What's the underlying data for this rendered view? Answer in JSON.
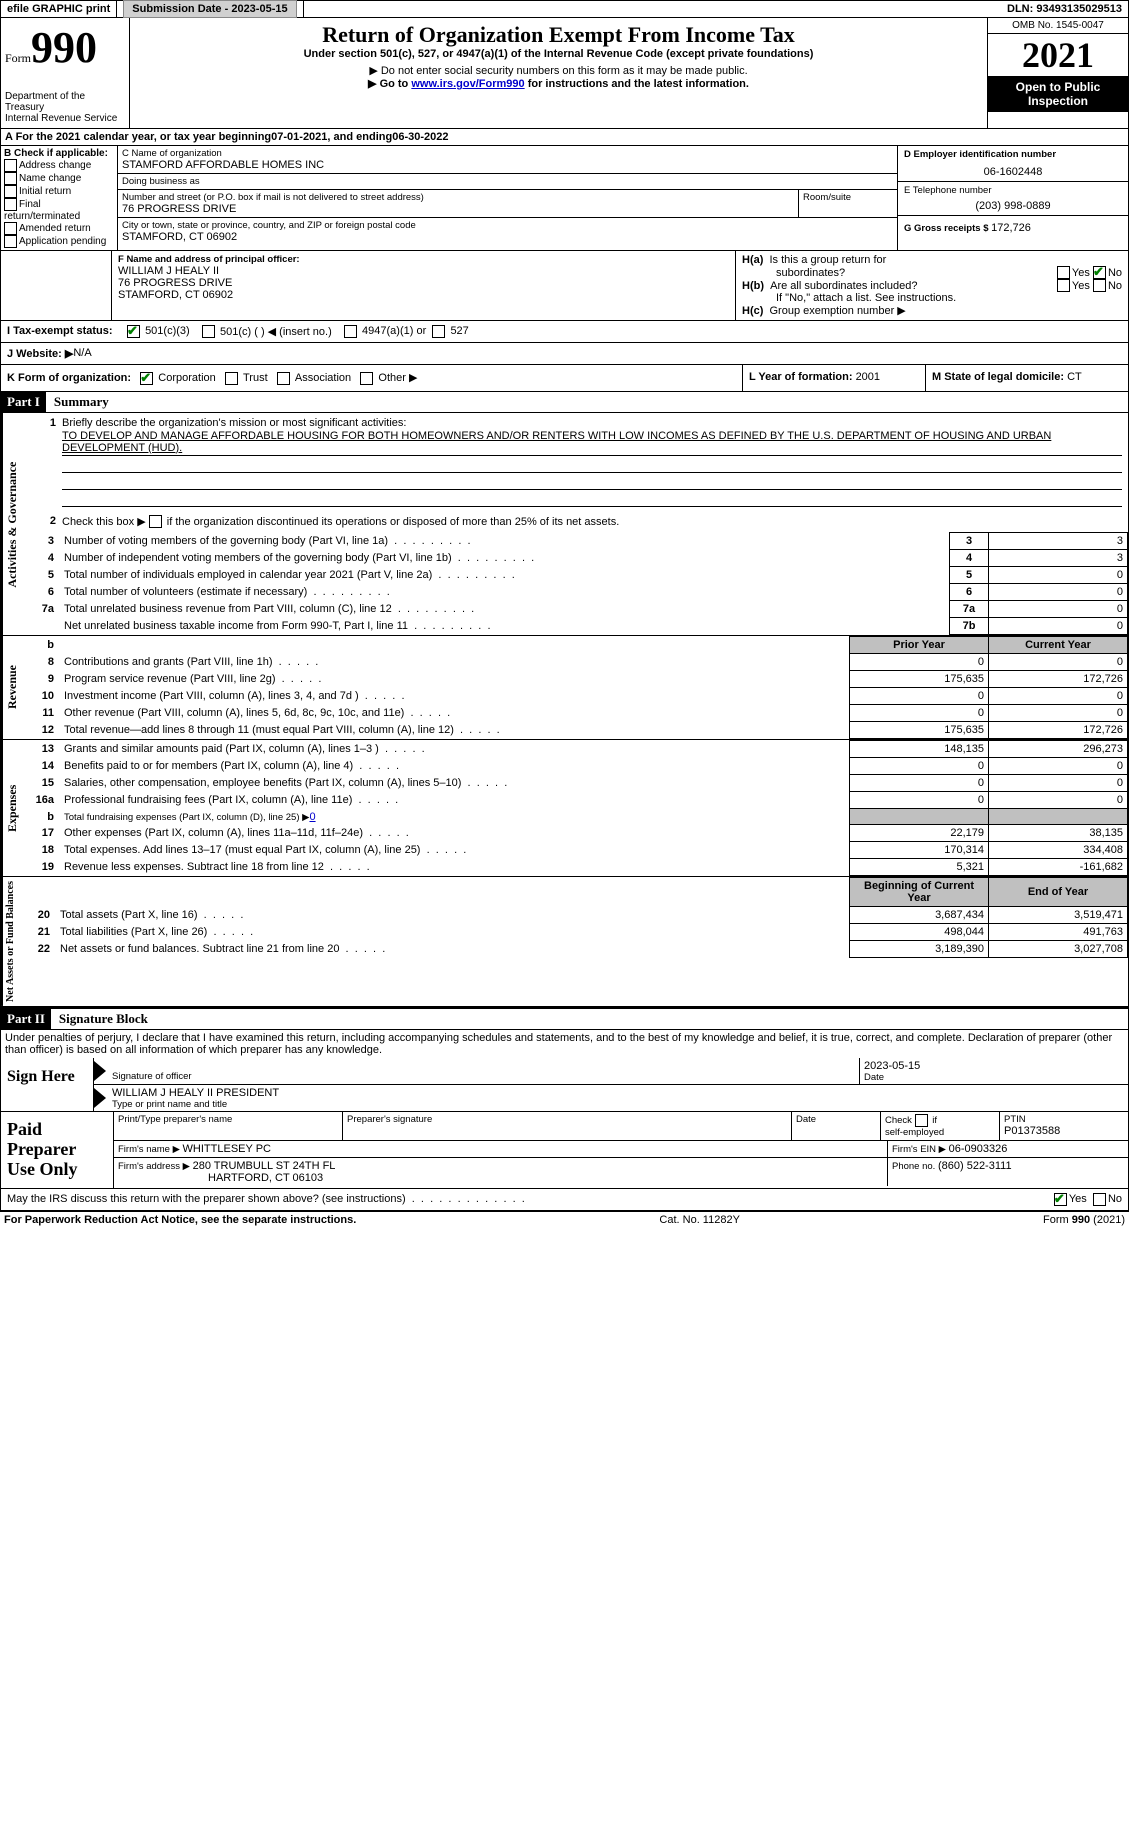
{
  "topbar": {
    "efile": "efile GRAPHIC print",
    "submission_label": "Submission Date - ",
    "submission_date": "2023-05-15",
    "dln_label": "DLN: ",
    "dln": "93493135029513"
  },
  "header": {
    "form_word": "Form",
    "form_num": "990",
    "dept": "Department of the Treasury",
    "irs": "Internal Revenue Service",
    "title": "Return of Organization Exempt From Income Tax",
    "subtitle": "Under section 501(c), 527, or 4947(a)(1) of the Internal Revenue Code (except private foundations)",
    "note1": "▶ Do not enter social security numbers on this form as it may be made public.",
    "note2_pre": "▶ Go to ",
    "note2_link": "www.irs.gov/Form990",
    "note2_post": " for instructions and the latest information.",
    "omb": "OMB No. 1545-0047",
    "year": "2021",
    "open": "Open to Public Inspection"
  },
  "periodA": {
    "text_pre": "A For the 2021 calendar year, or tax year beginning ",
    "begin": "07-01-2021",
    "mid": "    , and ending ",
    "end": "06-30-2022"
  },
  "sectionB": {
    "label": "B Check if applicable:",
    "items": [
      "Address change",
      "Name change",
      "Initial return",
      "Final return/terminated",
      "Amended return",
      "Application pending"
    ]
  },
  "sectionC": {
    "name_label": "C Name of organization",
    "name": "STAMFORD AFFORDABLE HOMES INC",
    "dba_label": "Doing business as",
    "dba": "",
    "addr_label": "Number and street (or P.O. box if mail is not delivered to street address)",
    "room_label": "Room/suite",
    "addr": "76 PROGRESS DRIVE",
    "city_label": "City or town, state or province, country, and ZIP or foreign postal code",
    "city": "STAMFORD, CT  06902"
  },
  "sectionD": {
    "ein_label": "D Employer identification number",
    "ein": "06-1602448",
    "tel_label": "E Telephone number",
    "tel": "(203) 998-0889",
    "gross_label": "G Gross receipts $ ",
    "gross": "172,726"
  },
  "sectionF": {
    "label": "F Name and address of principal officer:",
    "name": "WILLIAM J HEALY II",
    "addr1": "76 PROGRESS DRIVE",
    "addr2": "STAMFORD, CT  06902"
  },
  "sectionH": {
    "a_label": "H(a)  Is this a group return for subordinates?",
    "b_label": "H(b)  Are all subordinates included?",
    "b_note": "If \"No,\" attach a list. See instructions.",
    "c_label": "H(c)  Group exemption number ▶",
    "yes": "Yes",
    "no": "No"
  },
  "sectionI": {
    "label": "I    Tax-exempt status:",
    "opt1": "501(c)(3)",
    "opt2": "501(c) (   ) ◀ (insert no.)",
    "opt3": "4947(a)(1) or",
    "opt4": "527"
  },
  "sectionJ": {
    "label": "J   Website: ▶",
    "value": "  N/A"
  },
  "sectionK": {
    "label": "K Form of organization:",
    "corp": "Corporation",
    "trust": "Trust",
    "assoc": "Association",
    "other": "Other ▶"
  },
  "sectionL": {
    "label": "L Year of formation: ",
    "value": "2001"
  },
  "sectionM": {
    "label": "M State of legal domicile: ",
    "value": "CT"
  },
  "part1": {
    "header": "Part I",
    "title": "Summary",
    "line1_label": "Briefly describe the organization's mission or most significant activities:",
    "mission": "TO DEVELOP AND MANAGE AFFORDABLE HOUSING FOR BOTH HOMEOWNERS AND/OR RENTERS WITH LOW INCOMES AS DEFINED BY THE U.S. DEPARTMENT OF HOUSING AND URBAN DEVELOPMENT (HUD).",
    "line2": "Check this box ▶     if the organization discontinued its operations or disposed of more than 25% of its net assets.",
    "governance_label": "Activities & Governance",
    "revenue_label": "Revenue",
    "expenses_label": "Expenses",
    "netassets_label": "Net Assets or Fund Balances",
    "rows_gov": [
      {
        "n": "3",
        "d": "Number of voting members of the governing body (Part VI, line 1a)",
        "box": "3",
        "v": "3"
      },
      {
        "n": "4",
        "d": "Number of independent voting members of the governing body (Part VI, line 1b)",
        "box": "4",
        "v": "3"
      },
      {
        "n": "5",
        "d": "Total number of individuals employed in calendar year 2021 (Part V, line 2a)",
        "box": "5",
        "v": "0"
      },
      {
        "n": "6",
        "d": "Total number of volunteers (estimate if necessary)",
        "box": "6",
        "v": "0"
      },
      {
        "n": "7a",
        "d": "Total unrelated business revenue from Part VIII, column (C), line 12",
        "box": "7a",
        "v": "0"
      },
      {
        "n": "",
        "d": "Net unrelated business taxable income from Form 990-T, Part I, line 11",
        "box": "7b",
        "v": "0"
      }
    ],
    "prior_label": "Prior Year",
    "current_label": "Current Year",
    "rows_rev": [
      {
        "n": "8",
        "d": "Contributions and grants (Part VIII, line 1h)",
        "p": "0",
        "c": "0"
      },
      {
        "n": "9",
        "d": "Program service revenue (Part VIII, line 2g)",
        "p": "175,635",
        "c": "172,726"
      },
      {
        "n": "10",
        "d": "Investment income (Part VIII, column (A), lines 3, 4, and 7d )",
        "p": "0",
        "c": "0"
      },
      {
        "n": "11",
        "d": "Other revenue (Part VIII, column (A), lines 5, 6d, 8c, 9c, 10c, and 11e)",
        "p": "0",
        "c": "0"
      },
      {
        "n": "12",
        "d": "Total revenue—add lines 8 through 11 (must equal Part VIII, column (A), line 12)",
        "p": "175,635",
        "c": "172,726"
      }
    ],
    "rows_exp": [
      {
        "n": "13",
        "d": "Grants and similar amounts paid (Part IX, column (A), lines 1–3 )",
        "p": "148,135",
        "c": "296,273"
      },
      {
        "n": "14",
        "d": "Benefits paid to or for members (Part IX, column (A), line 4)",
        "p": "0",
        "c": "0"
      },
      {
        "n": "15",
        "d": "Salaries, other compensation, employee benefits (Part IX, column (A), lines 5–10)",
        "p": "0",
        "c": "0"
      },
      {
        "n": "16a",
        "d": "Professional fundraising fees (Part IX, column (A), line 11e)",
        "p": "0",
        "c": "0"
      },
      {
        "n": "b",
        "d": "Total fundraising expenses (Part IX, column (D), line 25) ▶",
        "p": "gray",
        "c": "gray",
        "extra": "0"
      },
      {
        "n": "17",
        "d": "Other expenses (Part IX, column (A), lines 11a–11d, 11f–24e)",
        "p": "22,179",
        "c": "38,135"
      },
      {
        "n": "18",
        "d": "Total expenses. Add lines 13–17 (must equal Part IX, column (A), line 25)",
        "p": "170,314",
        "c": "334,408"
      },
      {
        "n": "19",
        "d": "Revenue less expenses. Subtract line 18 from line 12",
        "p": "5,321",
        "c": "-161,682"
      }
    ],
    "begin_label": "Beginning of Current Year",
    "end_label": "End of Year",
    "rows_net": [
      {
        "n": "20",
        "d": "Total assets (Part X, line 16)",
        "p": "3,687,434",
        "c": "3,519,471"
      },
      {
        "n": "21",
        "d": "Total liabilities (Part X, line 26)",
        "p": "498,044",
        "c": "491,763"
      },
      {
        "n": "22",
        "d": "Net assets or fund balances. Subtract line 21 from line 20",
        "p": "3,189,390",
        "c": "3,027,708"
      }
    ]
  },
  "part2": {
    "header": "Part II",
    "title": "Signature Block",
    "declaration": "Under penalties of perjury, I declare that I have examined this return, including accompanying schedules and statements, and to the best of my knowledge and belief, it is true, correct, and complete. Declaration of preparer (other than officer) is based on all information of which preparer has any knowledge.",
    "sign_here": "Sign Here",
    "sig_officer": "Signature of officer",
    "sig_date": "2023-05-15",
    "date_label": "Date",
    "officer_name": "WILLIAM J HEALY II  PRESIDENT",
    "type_name": "Type or print name and title",
    "paid_label": "Paid Preparer Use Only",
    "print_name_label": "Print/Type preparer's name",
    "prep_sig_label": "Preparer's signature",
    "check_if": "Check         if self-employed",
    "ptin_label": "PTIN",
    "ptin": "P01373588",
    "firm_name_label": "Firm's name     ▶ ",
    "firm_name": "WHITTLESEY PC",
    "firm_ein_label": "Firm's EIN ▶ ",
    "firm_ein": "06-0903326",
    "firm_addr_label": "Firm's address ▶ ",
    "firm_addr1": "280 TRUMBULL ST 24TH FL",
    "firm_addr2": "HARTFORD, CT  06103",
    "phone_label": "Phone no. ",
    "phone": "(860) 522-3111",
    "discuss": "May the IRS discuss this return with the preparer shown above? (see instructions)"
  },
  "footer": {
    "left": "For Paperwork Reduction Act Notice, see the separate instructions.",
    "center": "Cat. No. 11282Y",
    "right": "Form 990 (2021)"
  }
}
